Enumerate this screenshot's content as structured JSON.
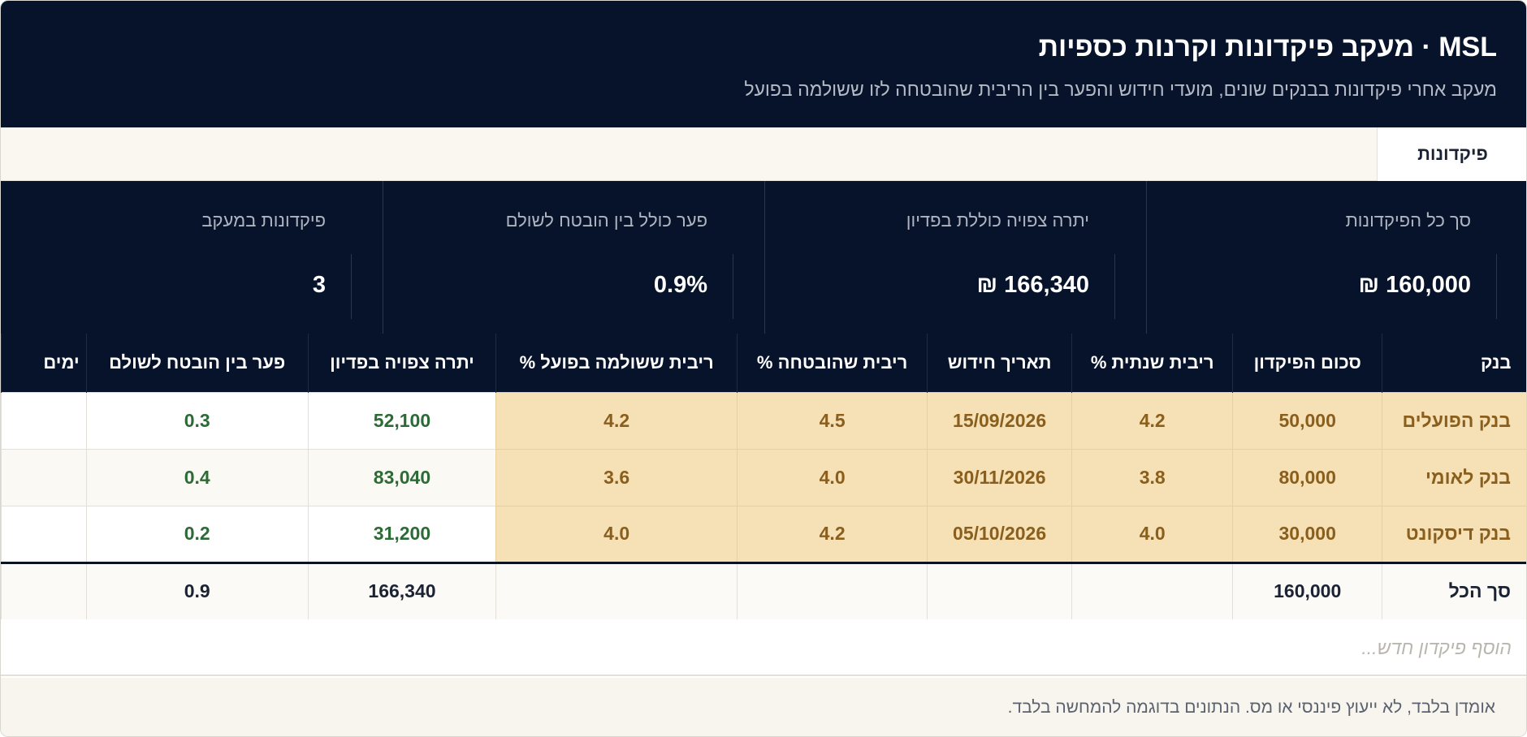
{
  "header": {
    "title": "MSL · מעקב פיקדונות וקרנות כספיות",
    "subtitle": "מעקב אחרי פיקדונות בבנקים שונים, מועדי חידוש והפער בין הריבית שהובטחה לזו ששולמה בפועל"
  },
  "tabs": [
    {
      "label": "פיקדונות",
      "active": true
    }
  ],
  "stats": [
    {
      "label": "סך כל הפיקדונות",
      "value": "160,000 ₪"
    },
    {
      "label": "יתרה צפויה כוללת בפדיון",
      "value": "166,340 ₪"
    },
    {
      "label": "פער כולל בין הובטח לשולם",
      "value": "0.9%"
    },
    {
      "label": "פיקדונות במעקב",
      "value": "3"
    }
  ],
  "table": {
    "columns": [
      "בנק",
      "סכום הפיקדון",
      "ריבית שנתית %",
      "תאריך חידוש",
      "ריבית שהובטחה %",
      "ריבית ששולמה בפועל %",
      "יתרה צפויה בפדיון",
      "פער בין הובטח לשולם",
      "ימים"
    ],
    "rows": [
      {
        "bank": "בנק הפועלים",
        "amount": "50,000",
        "annual_rate": "4.2",
        "renewal_date": "15/09/2026",
        "promised_rate": "4.5",
        "paid_rate": "4.2",
        "expected_balance": "52,100",
        "gap": "0.3",
        "days": ""
      },
      {
        "bank": "בנק לאומי",
        "amount": "80,000",
        "annual_rate": "3.8",
        "renewal_date": "30/11/2026",
        "promised_rate": "4.0",
        "paid_rate": "3.6",
        "expected_balance": "83,040",
        "gap": "0.4",
        "days": ""
      },
      {
        "bank": "בנק דיסקונט",
        "amount": "30,000",
        "annual_rate": "4.0",
        "renewal_date": "05/10/2026",
        "promised_rate": "4.2",
        "paid_rate": "4.0",
        "expected_balance": "31,200",
        "gap": "0.2",
        "days": ""
      }
    ],
    "total": {
      "label": "סך הכל",
      "amount": "160,000",
      "expected_balance": "166,340",
      "gap": "0.9"
    }
  },
  "add_row": {
    "placeholder": "הוסף פיקדון חדש..."
  },
  "footer": {
    "disclaimer": "אומדן בלבד, לא ייעוץ פיננסי או מס. הנתונים בדוגמה להמחשה בלבד."
  },
  "colors": {
    "navy": "#07132b",
    "highlight": "#f5e1b5",
    "highlight_text": "#8a5e1c",
    "green_text": "#2d6b36",
    "cream": "#faf7f0"
  }
}
